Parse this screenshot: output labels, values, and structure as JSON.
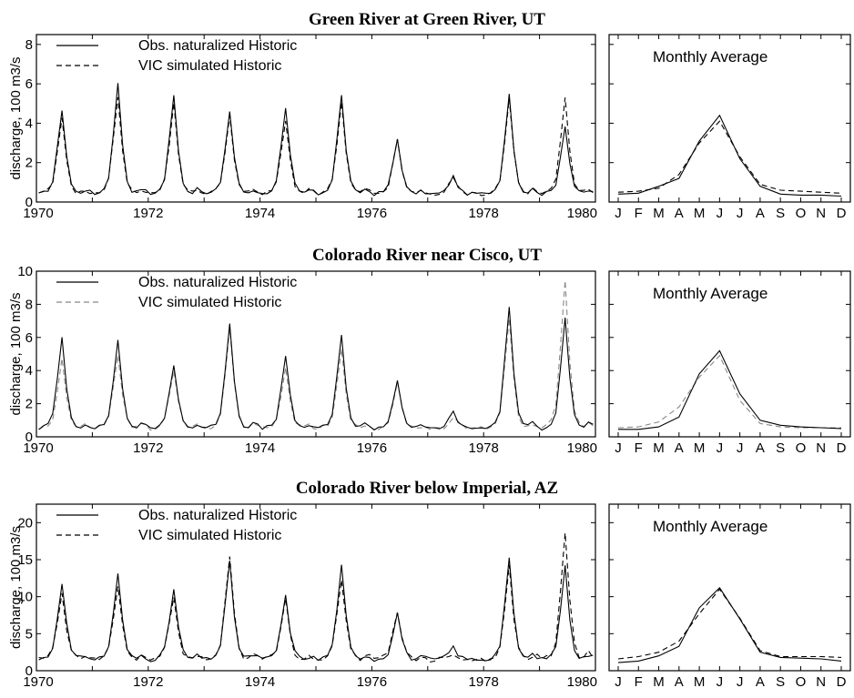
{
  "chart_data": [
    {
      "type": "line",
      "title": "Green River at Green River, UT",
      "ylabel": "discharge, 100 m3/s",
      "xlim": [
        1970,
        1980
      ],
      "ylim": [
        0,
        8.5
      ],
      "yticks": [
        "0",
        "2",
        "4",
        "6",
        "8"
      ],
      "ytick_values": [
        0,
        2,
        4,
        6,
        8
      ],
      "xticks": [
        "1970",
        "1972",
        "1974",
        "1976",
        "1978",
        "1980"
      ],
      "legend": {
        "placement": "top-left",
        "entries": [
          "Obs. naturalized Historic",
          "VIC simulated Historic"
        ]
      },
      "series_style": {
        "obs": "solid-black",
        "vic": "dashed-black"
      },
      "annual": {
        "peaks_obs": [
          4.7,
          6.0,
          5.4,
          4.6,
          4.7,
          5.4,
          3.2,
          1.3,
          5.5,
          3.9
        ],
        "peaks_vic": [
          4.2,
          5.4,
          5.0,
          4.4,
          4.2,
          5.0,
          3.1,
          1.2,
          5.2,
          5.4
        ],
        "base": 0.4
      },
      "inset": {
        "label": "Monthly Average",
        "months": [
          "J",
          "F",
          "M",
          "A",
          "M",
          "J",
          "J",
          "A",
          "S",
          "O",
          "N",
          "D"
        ],
        "ylim": [
          0,
          8.5
        ],
        "series": [
          {
            "name": "Obs. naturalized Historic",
            "values": [
              0.4,
              0.45,
              0.8,
              1.2,
              3.1,
              4.4,
              2.2,
              0.8,
              0.4,
              0.35,
              0.35,
              0.3
            ]
          },
          {
            "name": "VIC simulated Historic",
            "values": [
              0.5,
              0.55,
              0.7,
              1.4,
              3.0,
              4.1,
              2.3,
              0.9,
              0.6,
              0.55,
              0.5,
              0.45
            ]
          }
        ]
      }
    },
    {
      "type": "line",
      "title": "Colorado River near Cisco, UT",
      "ylabel": "discharge, 100 m3/s",
      "xlim": [
        1970,
        1980
      ],
      "ylim": [
        0,
        10
      ],
      "yticks": [
        "0",
        "2",
        "4",
        "6",
        "8",
        "10"
      ],
      "ytick_values": [
        0,
        2,
        4,
        6,
        8,
        10
      ],
      "xticks": [
        "1970",
        "1972",
        "1974",
        "1976",
        "1978",
        "1980"
      ],
      "legend": {
        "placement": "top-left",
        "entries": [
          "Obs. naturalized Historic",
          "VIC simulated Historic"
        ]
      },
      "series_style": {
        "obs": "solid-black",
        "vic": "dashed-gray"
      },
      "annual": {
        "peaks_obs": [
          6.0,
          5.8,
          4.4,
          6.9,
          4.8,
          6.1,
          3.4,
          1.5,
          7.9,
          7.2
        ],
        "peaks_vic": [
          4.7,
          5.0,
          4.0,
          6.4,
          4.2,
          5.3,
          3.2,
          1.2,
          7.2,
          9.4
        ],
        "base": 0.5
      },
      "inset": {
        "label": "Monthly Average",
        "months": [
          "J",
          "F",
          "M",
          "A",
          "M",
          "J",
          "J",
          "A",
          "S",
          "O",
          "N",
          "D"
        ],
        "ylim": [
          0,
          10
        ],
        "series": [
          {
            "name": "Obs. naturalized Historic",
            "values": [
              0.45,
              0.45,
              0.6,
              1.2,
              3.8,
              5.2,
              2.6,
              1.0,
              0.7,
              0.6,
              0.55,
              0.5
            ]
          },
          {
            "name": "VIC simulated Historic",
            "values": [
              0.55,
              0.6,
              0.9,
              1.8,
              3.6,
              4.9,
              2.2,
              0.8,
              0.6,
              0.55,
              0.55,
              0.55
            ]
          }
        ]
      }
    },
    {
      "type": "line",
      "title": "Colorado River below Imperial, AZ",
      "ylabel": "discharge, 100 m3/s",
      "xlim": [
        1970,
        1980
      ],
      "ylim": [
        0,
        22.5
      ],
      "yticks": [
        "0",
        "5",
        "10",
        "15",
        "20"
      ],
      "ytick_values": [
        0,
        5,
        10,
        15,
        20
      ],
      "xticks": [
        "1970",
        "1972",
        "1974",
        "1976",
        "1978",
        "1980"
      ],
      "legend": {
        "placement": "top-left",
        "entries": [
          "Obs. naturalized Historic",
          "VIC simulated Historic"
        ]
      },
      "series_style": {
        "obs": "solid-black",
        "vic": "dashed-black"
      },
      "annual": {
        "peaks_obs": [
          12.0,
          13.0,
          11.0,
          14.6,
          10.0,
          14.1,
          7.8,
          3.2,
          15.0,
          14.0
        ],
        "peaks_vic": [
          10.5,
          11.5,
          10.2,
          15.5,
          9.5,
          12.5,
          8.2,
          2.5,
          14.0,
          18.8
        ],
        "base": 1.5
      },
      "inset": {
        "label": "Monthly Average",
        "months": [
          "J",
          "F",
          "M",
          "A",
          "M",
          "J",
          "J",
          "A",
          "S",
          "O",
          "N",
          "D"
        ],
        "ylim": [
          0,
          22.5
        ],
        "series": [
          {
            "name": "Obs. naturalized Historic",
            "values": [
              1.1,
              1.3,
              2.0,
              3.3,
              8.5,
              11.2,
              7.0,
              2.5,
              1.8,
              1.7,
              1.6,
              1.3
            ]
          },
          {
            "name": "VIC simulated Historic",
            "values": [
              1.6,
              1.9,
              2.5,
              4.0,
              7.7,
              11.0,
              7.1,
              2.7,
              1.9,
              1.9,
              1.9,
              1.8
            ]
          }
        ]
      }
    }
  ]
}
